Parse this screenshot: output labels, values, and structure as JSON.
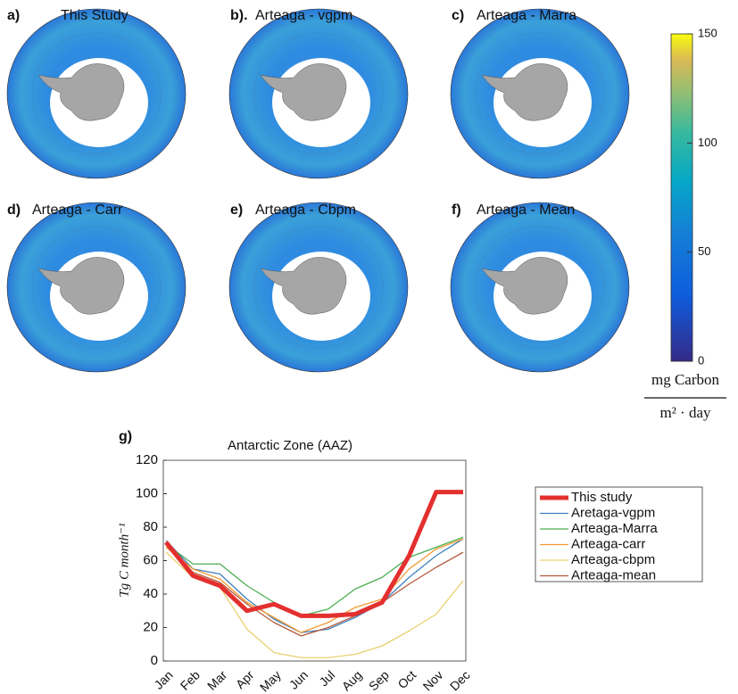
{
  "maps": {
    "panels": [
      {
        "label": "a)",
        "title": "This Study"
      },
      {
        "label": "b).",
        "title": "Arteaga - vgpm"
      },
      {
        "label": "c)",
        "title": "Arteaga - Marra"
      },
      {
        "label": "d)",
        "title": "Arteaga - Carr"
      },
      {
        "label": "e)",
        "title": "Arteaga - Cbpm"
      },
      {
        "label": "f)",
        "title": "Arteaga - Mean"
      }
    ]
  },
  "colorbar": {
    "lim": [
      0,
      150
    ],
    "ticks": [
      0,
      50,
      100,
      150
    ],
    "unit_numerator": "mg Carbon",
    "unit_denominator": "m² · day"
  },
  "chart_data": {
    "type": "line",
    "panel_label": "g)",
    "title": "Antarctic Zone (AAZ)",
    "y_label": "Tg C month⁻¹",
    "categories": [
      "Jan",
      "Feb",
      "Mar",
      "Apr",
      "May",
      "Jun",
      "Jul",
      "Aug",
      "Sep",
      "Oct",
      "Nov",
      "Dec"
    ],
    "ylim": [
      0,
      120
    ],
    "yticks": [
      0,
      20,
      40,
      60,
      80,
      100,
      120
    ],
    "legend": "right",
    "series": [
      {
        "name": "This study",
        "color": "#e3302f",
        "width": 5,
        "values": [
          71,
          51,
          45,
          30,
          34,
          27,
          27,
          28,
          35,
          63,
          101,
          101
        ]
      },
      {
        "name": "Aretaga-vgpm",
        "color": "#3f7fbf",
        "width": 1.3,
        "values": [
          72,
          55,
          52,
          37,
          25,
          17,
          19,
          26,
          35,
          50,
          63,
          73
        ]
      },
      {
        "name": "Arteaga-Marra",
        "color": "#4caf50",
        "width": 1.3,
        "values": [
          70,
          58,
          58,
          45,
          35,
          27,
          31,
          43,
          50,
          62,
          68,
          74
        ]
      },
      {
        "name": "Arteaga-carr",
        "color": "#f39a33",
        "width": 1.3,
        "values": [
          68,
          55,
          49,
          35,
          26,
          17,
          23,
          32,
          37,
          55,
          67,
          73
        ]
      },
      {
        "name": "Arteaga-cbpm",
        "color": "#e9d06f",
        "width": 1.3,
        "values": [
          65,
          50,
          44,
          19,
          5,
          2,
          2,
          4,
          9,
          18,
          28,
          48
        ]
      },
      {
        "name": "Arteaga-mean",
        "color": "#b3593c",
        "width": 1.3,
        "values": [
          70,
          53,
          47,
          34,
          23,
          15,
          20,
          27,
          35,
          46,
          56,
          65
        ]
      }
    ]
  }
}
